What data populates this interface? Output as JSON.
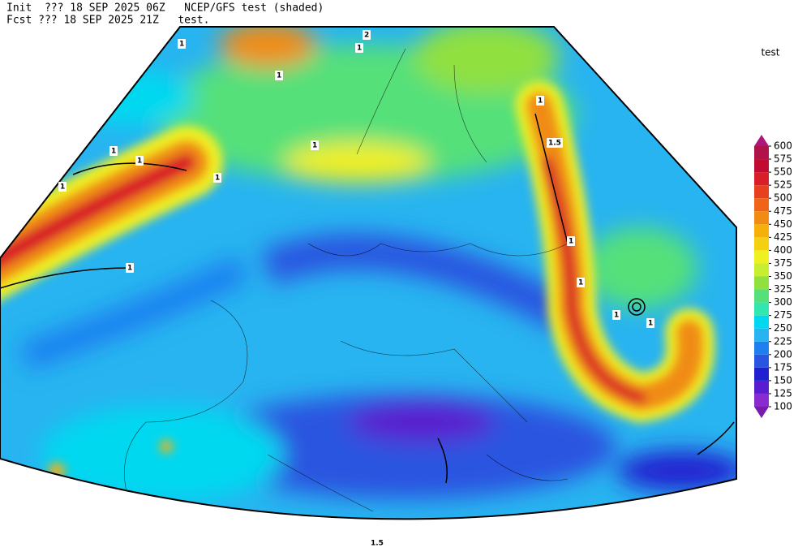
{
  "header": {
    "line1": "Init  ??? 18 SEP 2025 06Z   NCEP/GFS test (shaded)",
    "line2": "Fcst ??? 18 SEP 2025 21Z   test."
  },
  "legend": {
    "title": "test",
    "levels": [
      100,
      125,
      150,
      175,
      200,
      225,
      250,
      275,
      300,
      325,
      350,
      375,
      400,
      425,
      450,
      475,
      500,
      525,
      550,
      575,
      600
    ],
    "colors": [
      "#7a1bb0",
      "#8a2bd0",
      "#5a1ccf",
      "#2020d0",
      "#2a55e0",
      "#1e80f0",
      "#28b4f0",
      "#00d8f0",
      "#33e6b0",
      "#55e07a",
      "#90e040",
      "#c8ee30",
      "#f0f020",
      "#f5d010",
      "#f5b00a",
      "#f08c14",
      "#f06418",
      "#e8401e",
      "#d81e28",
      "#c00c30",
      "#b0124a",
      "#b0157a"
    ]
  },
  "contour_labels": [
    "2",
    "1",
    "1",
    "1",
    "1",
    "1",
    "1",
    "1",
    "1.5",
    "1",
    "1",
    "1",
    "1",
    "1",
    "1",
    "1",
    "1.5"
  ]
}
